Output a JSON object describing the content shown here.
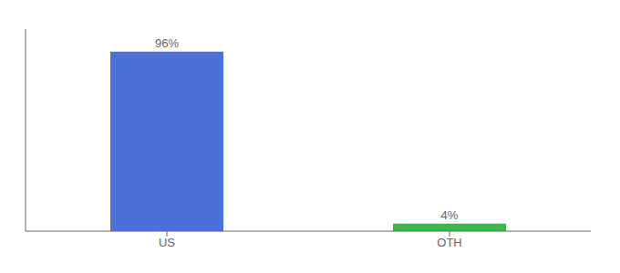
{
  "chart_data": {
    "type": "bar",
    "categories": [
      "US",
      "OTH"
    ],
    "values": [
      96,
      4
    ],
    "value_labels": [
      "96%",
      "4%"
    ],
    "colors": [
      "#4a72d9",
      "#3cb84a"
    ],
    "ylim": [
      0,
      108
    ],
    "data_labels": true,
    "tick_labels": "x"
  }
}
